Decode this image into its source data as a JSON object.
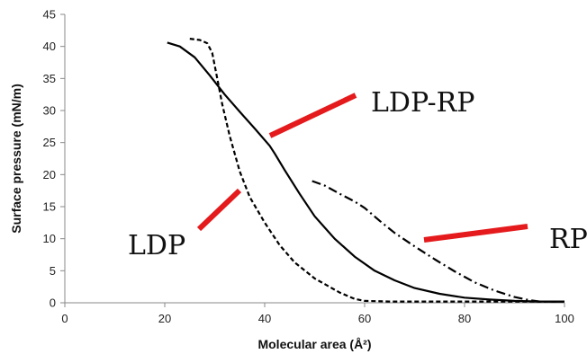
{
  "chart_data": {
    "type": "line",
    "title": "",
    "xlabel": "Molecular area (Å²)",
    "ylabel": "Surface pressure (mN/m)",
    "xlim": [
      0,
      100
    ],
    "ylim": [
      0,
      45
    ],
    "xticks": [
      "0",
      "20",
      "40",
      "60",
      "80",
      "100"
    ],
    "yticks": [
      "0",
      "5",
      "10",
      "15",
      "20",
      "25",
      "30",
      "35",
      "40",
      "45"
    ],
    "grid": false,
    "legend": "none",
    "series": [
      {
        "name": "LDP",
        "style": "dashed",
        "color": "#000000",
        "x": [
          25,
          27,
          28.5,
          29.5,
          30.5,
          31.5,
          33,
          35,
          37,
          40,
          43,
          46,
          50,
          55,
          58,
          60,
          65,
          70,
          80,
          90,
          100
        ],
        "y": [
          41.2,
          41,
          40.5,
          39,
          35,
          31,
          26,
          20.5,
          16.5,
          12.5,
          9,
          6.3,
          3.8,
          1.6,
          0.6,
          0.3,
          0.2,
          0.2,
          0.2,
          0.2,
          0.2
        ]
      },
      {
        "name": "LDP-RP",
        "style": "solid",
        "color": "#000000",
        "x": [
          20.5,
          23,
          26,
          29,
          32,
          35,
          38,
          41,
          42,
          44,
          47,
          50,
          54,
          58,
          62,
          66,
          70,
          75,
          80,
          85,
          90,
          95,
          100
        ],
        "y": [
          40.6,
          40,
          38.3,
          35.5,
          32.5,
          29.8,
          27.2,
          24.5,
          23.3,
          20.7,
          17,
          13.5,
          10,
          7.2,
          5,
          3.5,
          2.3,
          1.4,
          0.8,
          0.5,
          0.3,
          0.2,
          0.2
        ]
      },
      {
        "name": "RP",
        "style": "dash-dot",
        "color": "#000000",
        "x": [
          49.5,
          52,
          55,
          58,
          60,
          63,
          66,
          70,
          74,
          78,
          82,
          86,
          90,
          93,
          95,
          100
        ],
        "y": [
          19,
          18.3,
          17,
          15.8,
          14.8,
          12.8,
          10.9,
          8.8,
          6.8,
          4.9,
          3.2,
          1.9,
          0.9,
          0.4,
          0.2,
          0.2
        ]
      }
    ],
    "annotations": [
      {
        "text": "LDP-RP",
        "pointer_color": "#e41a1c"
      },
      {
        "text": "LDP",
        "pointer_color": "#e41a1c"
      },
      {
        "text": "RP",
        "pointer_color": "#e41a1c"
      }
    ]
  }
}
